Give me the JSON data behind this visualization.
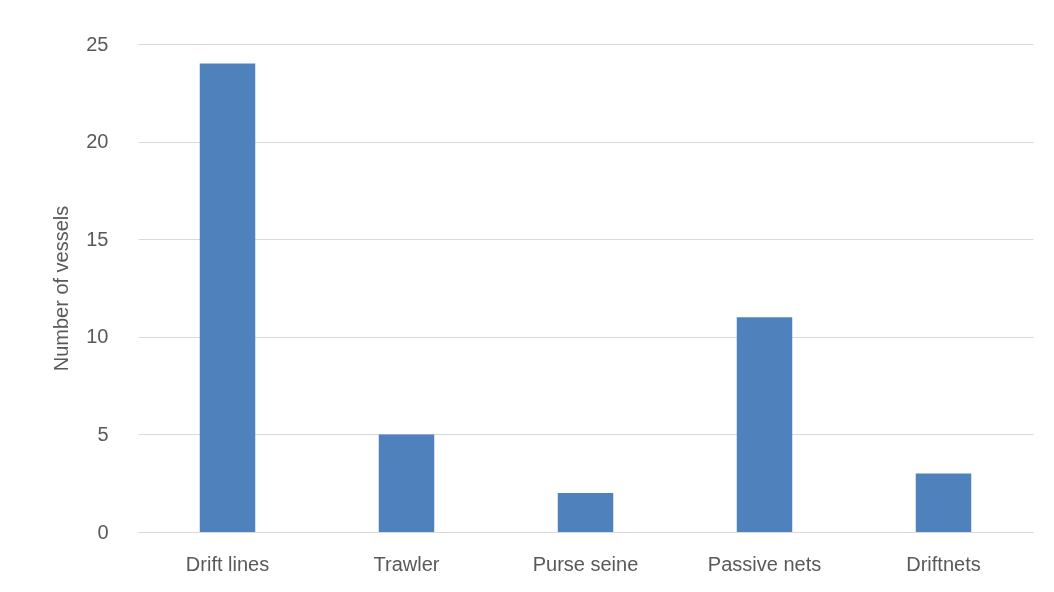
{
  "chart_data": {
    "type": "bar",
    "ylabel": "Number of vessels",
    "categories": [
      "Drift lines",
      "Trawler",
      "Purse seine",
      "Passive nets",
      "Driftnets"
    ],
    "values": [
      24,
      5,
      2,
      11,
      3
    ],
    "color": "#4f81bd",
    "ylim": [
      0,
      25
    ],
    "yticks": [
      0,
      5,
      10,
      15,
      20,
      25
    ],
    "grid": "y"
  }
}
